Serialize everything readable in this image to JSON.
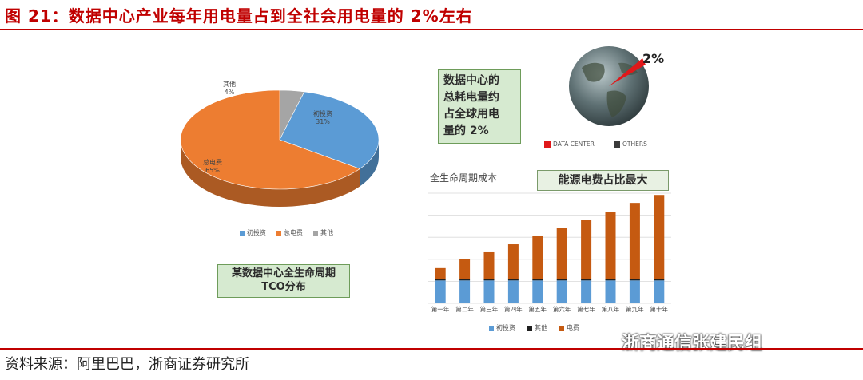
{
  "title": "图 21：数据中心产业每年用电量占到全社会用电量的 2%左右",
  "source": "资料来源：阿里巴巴，浙商证券研究所",
  "watermark": "浙商通信张建民组",
  "pie": {
    "box_label_line1": "某数据中心全生命周期",
    "box_label_line2": "TCO分布",
    "slices": [
      {
        "name": "初投资",
        "pct_label": "31%",
        "value": 31,
        "color": "#5b9bd5"
      },
      {
        "name": "总电费",
        "pct_label": "65%",
        "value": 65,
        "color": "#ed7d31"
      },
      {
        "name": "其他",
        "pct_label": "4%",
        "value": 4,
        "color": "#a5a5a5"
      }
    ],
    "legend": [
      "初投资",
      "总电费",
      "其他"
    ]
  },
  "globe": {
    "callout_line1": "数据中心的",
    "callout_line2": "总耗电量约",
    "callout_line3": "占全球用电",
    "callout_line4": "量的 2%",
    "pct_label": "2%",
    "legend": [
      {
        "label": "DATA CENTER",
        "color": "#e0181a"
      },
      {
        "label": "OTHERS",
        "color": "#3b3b3b"
      }
    ]
  },
  "bar_section": {
    "subtitle": "全生命周期成本",
    "highlight": "能源电费占比最大"
  },
  "chart_data": {
    "type": "bar",
    "stacked": true,
    "categories": [
      "第一年",
      "第二年",
      "第三年",
      "第四年",
      "第五年",
      "第六年",
      "第七年",
      "第八年",
      "第九年",
      "第十年"
    ],
    "series": [
      {
        "name": "初投资",
        "color": "#5b9bd5",
        "values": [
          26,
          26,
          26,
          26,
          26,
          26,
          26,
          26,
          26,
          26
        ]
      },
      {
        "name": "其他",
        "color": "#1f1f1f",
        "values": [
          2,
          2,
          2,
          2,
          2,
          2,
          2,
          2,
          2,
          2
        ]
      },
      {
        "name": "电费",
        "color": "#c55a11",
        "values": [
          12,
          22,
          30,
          39,
          49,
          58,
          67,
          76,
          86,
          95
        ]
      }
    ],
    "grid": true,
    "legend_position": "bottom"
  }
}
